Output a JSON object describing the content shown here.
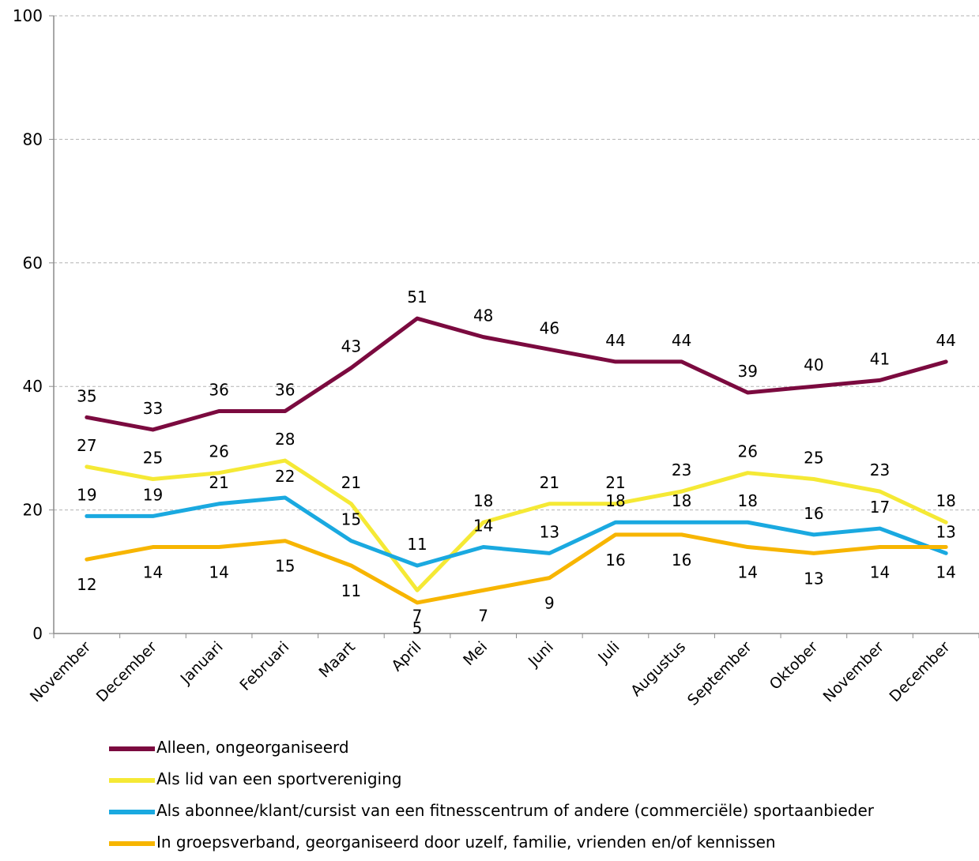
{
  "chart_data": {
    "type": "line",
    "categories": [
      "November",
      "December",
      "Januari",
      "Februari",
      "Maart",
      "April",
      "Mei",
      "Juni",
      "Juli",
      "Augustus",
      "September",
      "Oktober",
      "November",
      "December"
    ],
    "ylim": [
      0,
      100
    ],
    "yticks": [
      0,
      20,
      40,
      60,
      80,
      100
    ],
    "grid": true,
    "legend_position": "bottom",
    "series": [
      {
        "name": "Alleen, ongeorganiseerd",
        "color": "#7b0a3f",
        "values": [
          35,
          33,
          36,
          36,
          43,
          51,
          48,
          46,
          44,
          44,
          39,
          40,
          41,
          44
        ],
        "label_pos": [
          "above",
          "above",
          "above",
          "above",
          "above",
          "above",
          "above",
          "above",
          "above",
          "above",
          "above",
          "above",
          "above",
          "above"
        ]
      },
      {
        "name": "Als lid van een sportvereniging",
        "color": "#f5e935",
        "values": [
          27,
          25,
          26,
          28,
          21,
          7,
          18,
          21,
          21,
          23,
          26,
          25,
          23,
          18
        ],
        "label_pos": [
          "above",
          "above",
          "above",
          "above",
          "above",
          "below",
          "above",
          "above",
          "above",
          "above",
          "above",
          "above",
          "above",
          "above"
        ]
      },
      {
        "name": "Als abonnee/klant/cursist van een fitnesscentrum of andere (commerciële) sportaanbieder",
        "color": "#1aa9e0",
        "values": [
          19,
          19,
          21,
          22,
          15,
          11,
          14,
          13,
          18,
          18,
          18,
          16,
          17,
          13
        ],
        "label_pos": [
          "above",
          "above",
          "above",
          "above",
          "above",
          "above",
          "above",
          "above",
          "above",
          "above",
          "above",
          "above",
          "above",
          "above"
        ]
      },
      {
        "name": "In groepsverband, georganiseerd door uzelf, familie, vrienden en/of kennissen",
        "color": "#f7b500",
        "values": [
          12,
          14,
          14,
          15,
          11,
          5,
          7,
          9,
          16,
          16,
          14,
          13,
          14,
          14
        ],
        "label_pos": [
          "below",
          "below",
          "below",
          "below",
          "below",
          "below",
          "below",
          "below",
          "below",
          "below",
          "below",
          "below",
          "below",
          "below"
        ]
      }
    ]
  }
}
